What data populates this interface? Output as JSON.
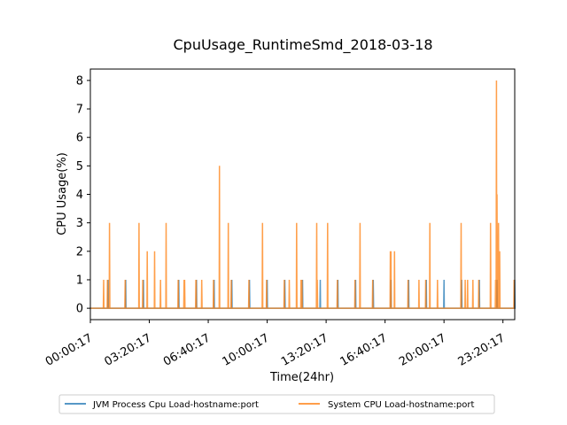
{
  "chart_data": {
    "type": "line",
    "title": "CpuUsage_RuntimeSmd_2018-03-18",
    "xlabel": "Time(24hr)",
    "ylabel": "CPU Usage(%)",
    "x_unit": "minutes since 00:00:17",
    "xlim": [
      0,
      1440
    ],
    "ylim": [
      -0.4,
      8.4
    ],
    "yticks": [
      0,
      1,
      2,
      3,
      4,
      5,
      6,
      7,
      8
    ],
    "xticks": [
      {
        "value": 0,
        "label": "00:00:17"
      },
      {
        "value": 200,
        "label": "03:20:17"
      },
      {
        "value": 400,
        "label": "06:40:17"
      },
      {
        "value": 600,
        "label": "10:00:17"
      },
      {
        "value": 800,
        "label": "13:20:17"
      },
      {
        "value": 1000,
        "label": "16:40:17"
      },
      {
        "value": 1200,
        "label": "20:00:17"
      },
      {
        "value": 1400,
        "label": "23:20:17"
      }
    ],
    "grid": false,
    "legend_position": "bottom",
    "series": [
      {
        "name": "JVM Process Cpu Load-hostname:port",
        "color": "#1f77b4",
        "spikes": [
          [
            60,
            1
          ],
          [
            120,
            1
          ],
          [
            180,
            1
          ],
          [
            300,
            1
          ],
          [
            360,
            1
          ],
          [
            420,
            1
          ],
          [
            480,
            1
          ],
          [
            540,
            1
          ],
          [
            600,
            1
          ],
          [
            660,
            1
          ],
          [
            720,
            1
          ],
          [
            780,
            1
          ],
          [
            840,
            1
          ],
          [
            900,
            1
          ],
          [
            960,
            1
          ],
          [
            1020,
            1
          ],
          [
            1080,
            1
          ],
          [
            1140,
            1
          ],
          [
            1200,
            1
          ],
          [
            1260,
            1
          ],
          [
            1320,
            1
          ],
          [
            1380,
            1
          ],
          [
            1440,
            1
          ]
        ]
      },
      {
        "name": "System CPU Load-hostname:port",
        "color": "#ff7f0e",
        "spikes": [
          [
            45,
            1
          ],
          [
            58,
            1
          ],
          [
            65,
            3
          ],
          [
            118,
            1
          ],
          [
            165,
            3
          ],
          [
            178,
            1
          ],
          [
            193,
            2
          ],
          [
            218,
            2
          ],
          [
            238,
            1
          ],
          [
            257,
            3
          ],
          [
            298,
            1
          ],
          [
            318,
            1
          ],
          [
            320,
            1
          ],
          [
            358,
            1
          ],
          [
            359,
            1
          ],
          [
            378,
            1
          ],
          [
            418,
            1
          ],
          [
            438,
            5
          ],
          [
            468,
            3
          ],
          [
            478,
            1
          ],
          [
            538,
            1
          ],
          [
            584,
            3
          ],
          [
            598,
            1
          ],
          [
            658,
            1
          ],
          [
            675,
            1
          ],
          [
            700,
            3
          ],
          [
            715,
            1
          ],
          [
            718,
            1
          ],
          [
            768,
            3
          ],
          [
            770,
            1
          ],
          [
            805,
            3
          ],
          [
            838,
            1
          ],
          [
            898,
            1
          ],
          [
            915,
            3
          ],
          [
            958,
            1
          ],
          [
            1018,
            2
          ],
          [
            1020,
            2
          ],
          [
            1032,
            2
          ],
          [
            1078,
            1
          ],
          [
            1115,
            1
          ],
          [
            1138,
            1
          ],
          [
            1152,
            3
          ],
          [
            1178,
            1
          ],
          [
            1258,
            3
          ],
          [
            1272,
            1
          ],
          [
            1280,
            1
          ],
          [
            1298,
            1
          ],
          [
            1318,
            1
          ],
          [
            1358,
            3
          ],
          [
            1375,
            1
          ],
          [
            1378,
            8
          ],
          [
            1380,
            4
          ],
          [
            1385,
            3
          ],
          [
            1389,
            2
          ],
          [
            1438,
            1
          ]
        ]
      }
    ]
  }
}
